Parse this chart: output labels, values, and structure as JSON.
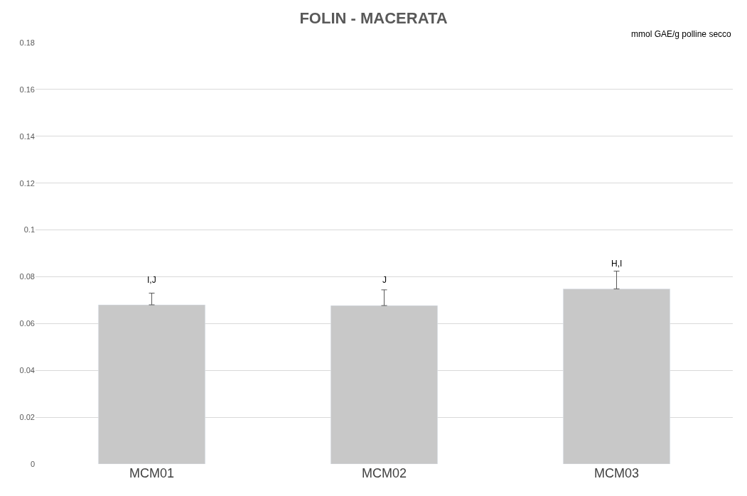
{
  "chart_data": {
    "type": "bar",
    "title": "FOLIN - MACERATA",
    "categories": [
      "MCM01",
      "MCM02",
      "MCM03"
    ],
    "values": [
      0.068,
      0.0677,
      0.0748
    ],
    "errors": [
      [
        0.068,
        0.073
      ],
      [
        0.0677,
        0.0744
      ],
      [
        0.0748,
        0.0824
      ]
    ],
    "color": "#c8c8c8",
    "ylim": [
      0,
      0.18
    ],
    "yticks": [
      0,
      0.02,
      0.04,
      0.06,
      0.08,
      {
        "value": 0.1,
        "label": "0.1"
      },
      0.12,
      0.14,
      0.16,
      0.18
    ],
    "grid": "y",
    "legend": false,
    "annotations": [
      "I,J",
      "J",
      "H,I",
      "mmol GAE/g polline secco"
    ]
  }
}
